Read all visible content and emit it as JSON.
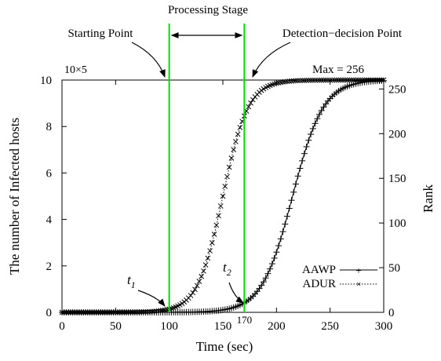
{
  "chart_data": {
    "type": "line",
    "title": "",
    "xlabel": "Time (sec)",
    "ylabel": "The number of Infected hosts",
    "y2label": "Rank",
    "xlim": [
      0,
      300
    ],
    "ylim": [
      0,
      10
    ],
    "y2lim": [
      0,
      260
    ],
    "y_multiplier": "10×5",
    "x_ticks": [
      "0",
      "50",
      "100",
      "150",
      "170",
      "200",
      "250",
      "300"
    ],
    "y_ticks": [
      "0",
      "2",
      "4",
      "6",
      "8",
      "10"
    ],
    "y2_ticks": [
      "0",
      "50",
      "100",
      "150",
      "200",
      "250"
    ],
    "grid": false,
    "legend_position": "bottom-right",
    "series": [
      {
        "name": "AAWP",
        "marker": "+",
        "line": "solid",
        "x0": 215,
        "k": 0.07,
        "x_range": [
          0,
          300
        ],
        "step": 2,
        "ymax": 10
      },
      {
        "name": "ADUR",
        "marker": "x",
        "line": "dotted",
        "x0": 150,
        "k": 0.085,
        "x_range": [
          0,
          300
        ],
        "step": 2,
        "ymax": 10
      }
    ],
    "vertical_lines": [
      {
        "x": 100,
        "color": "#00dd00"
      },
      {
        "x": 170,
        "color": "#00dd00"
      }
    ],
    "annotations": {
      "processing_stage": "Processing Stage",
      "starting_point": "Starting Point",
      "detection_point": "Detection−decision Point",
      "max_label": "Max = 256",
      "t1": "t",
      "t1_sub": "1",
      "t2": "t",
      "t2_sub": "2"
    }
  }
}
